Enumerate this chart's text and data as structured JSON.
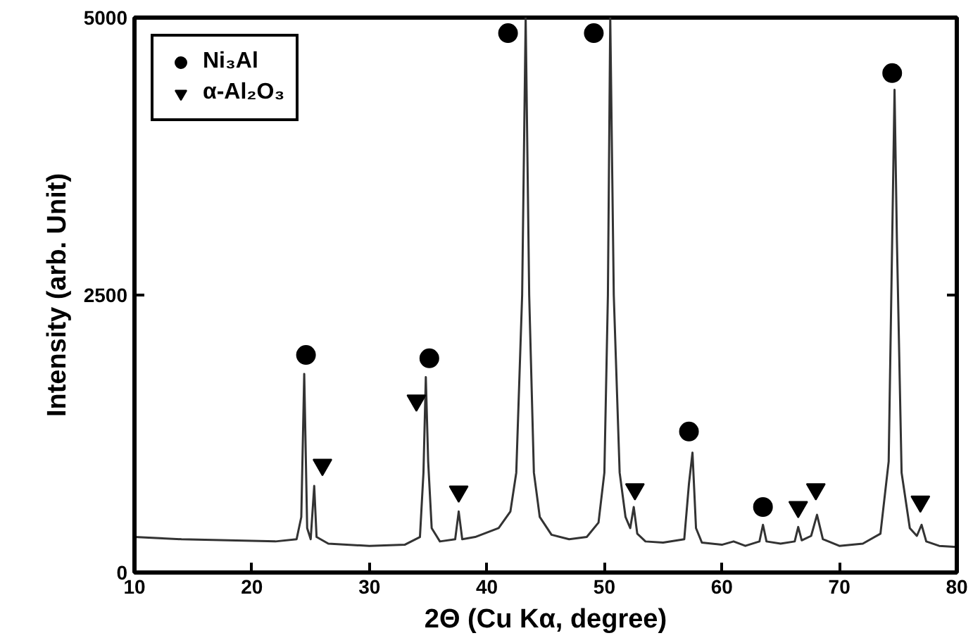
{
  "chart_data": {
    "type": "line",
    "xlabel": "2Θ (Cu Kα, degree)",
    "ylabel": "Intensity (arb. Unit)",
    "xlim": [
      10,
      80
    ],
    "ylim": [
      0,
      5000
    ],
    "xticks": [
      10,
      20,
      30,
      40,
      50,
      60,
      70,
      80
    ],
    "yticks": [
      0,
      2500,
      5000
    ],
    "grid": false,
    "legend": "top left",
    "series": [
      {
        "color": "#333333",
        "marker": "none",
        "x": [
          10,
          14,
          18,
          22,
          23.8,
          24.2,
          24.45,
          24.7,
          25.0,
          25.3,
          25.5,
          26.5,
          30,
          33,
          34.3,
          34.6,
          34.8,
          35.0,
          35.3,
          36,
          37.3,
          37.6,
          37.9,
          39,
          41,
          42,
          42.5,
          43,
          43.3,
          43.6,
          44,
          44.5,
          45.5,
          47,
          48.5,
          49.5,
          50.0,
          50.3,
          50.5,
          50.8,
          51.3,
          51.8,
          52.2,
          52.5,
          52.8,
          53.5,
          55,
          56.8,
          57.2,
          57.5,
          57.8,
          58.3,
          60,
          61,
          62,
          63.2,
          63.5,
          63.8,
          65,
          66.2,
          66.5,
          66.8,
          67.6,
          68.1,
          68.6,
          70,
          72,
          73.5,
          74.2,
          74.5,
          74.7,
          74.9,
          75.3,
          76,
          76.6,
          77.0,
          77.4,
          78.5,
          80
        ],
        "values": [
          320,
          300,
          290,
          280,
          300,
          500,
          1790,
          400,
          300,
          780,
          320,
          260,
          240,
          250,
          320,
          900,
          1760,
          1000,
          400,
          280,
          300,
          550,
          300,
          320,
          400,
          550,
          900,
          2500,
          5000,
          2500,
          900,
          500,
          340,
          300,
          320,
          450,
          900,
          2500,
          5000,
          2500,
          900,
          500,
          400,
          590,
          350,
          280,
          270,
          300,
          800,
          1080,
          400,
          270,
          250,
          280,
          240,
          280,
          430,
          280,
          260,
          280,
          410,
          290,
          330,
          520,
          300,
          240,
          260,
          350,
          1000,
          3000,
          4350,
          3000,
          900,
          400,
          330,
          430,
          280,
          240,
          230
        ]
      },
      {
        "name": "Ni₃Al",
        "color": "#000000",
        "type": "scatter",
        "marker": "circle",
        "x": [
          24.6,
          35.1,
          41.8,
          49.1,
          57.2,
          63.5,
          74.5
        ],
        "values": [
          1960,
          1930,
          4860,
          4860,
          1270,
          590,
          4500
        ]
      },
      {
        "name": "α-Al₂O₃",
        "color": "#000000",
        "type": "scatter",
        "marker": "triangle",
        "x": [
          26.0,
          34.0,
          37.6,
          52.6,
          66.5,
          68.0,
          76.9
        ],
        "values": [
          970,
          1550,
          730,
          750,
          590,
          750,
          640
        ]
      }
    ]
  }
}
